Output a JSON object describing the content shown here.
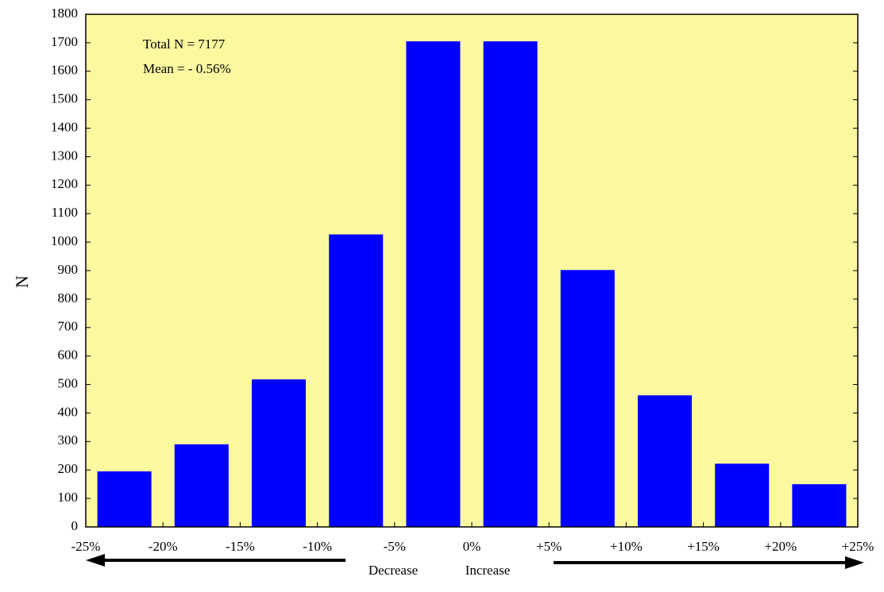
{
  "chart_data": {
    "type": "histogram",
    "ylabel": "N",
    "annotations": [
      "Total N = 7177",
      "Mean = - 0.56%"
    ],
    "direction_labels": [
      "Decrease",
      "Increase"
    ],
    "bins": [
      -25,
      -20,
      -15,
      -10,
      -5,
      0,
      5,
      10,
      15,
      20,
      25
    ],
    "values": [
      195,
      290,
      518,
      1027,
      1705,
      1705,
      902,
      462,
      222,
      150
    ],
    "color": "#0000ff",
    "background": "#fbf8a0",
    "xlim": [
      -25,
      25
    ],
    "xticks": [
      {
        "value": -25,
        "label": "-25%"
      },
      {
        "value": -20,
        "label": "-20%"
      },
      {
        "value": -15,
        "label": "-15%"
      },
      {
        "value": -10,
        "label": "-10%"
      },
      {
        "value": -5,
        "label": "-5%"
      },
      {
        "value": 0,
        "label": "0%"
      },
      {
        "value": 5,
        "label": "+5%"
      },
      {
        "value": 10,
        "label": "+10%"
      },
      {
        "value": 15,
        "label": "+15%"
      },
      {
        "value": 20,
        "label": "+20%"
      },
      {
        "value": 25,
        "label": "+25%"
      }
    ],
    "ylim": [
      0,
      1800
    ],
    "yticks": [
      0,
      100,
      200,
      300,
      400,
      500,
      600,
      700,
      800,
      900,
      1000,
      1100,
      1200,
      1300,
      1400,
      1500,
      1600,
      1700,
      1800
    ]
  }
}
